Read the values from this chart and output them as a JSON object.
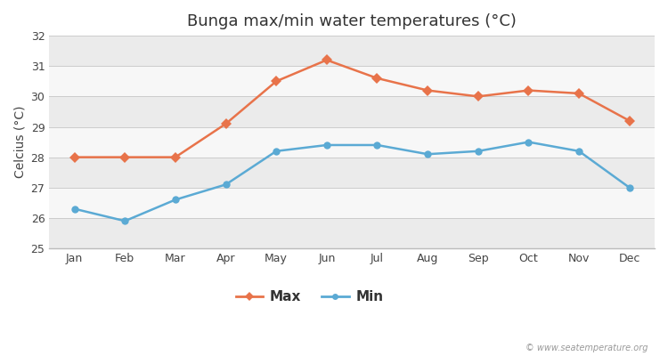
{
  "months": [
    "Jan",
    "Feb",
    "Mar",
    "Apr",
    "May",
    "Jun",
    "Jul",
    "Aug",
    "Sep",
    "Oct",
    "Nov",
    "Dec"
  ],
  "max_temps": [
    28.0,
    28.0,
    28.0,
    29.1,
    30.5,
    31.2,
    30.6,
    30.2,
    30.0,
    30.2,
    30.1,
    29.2
  ],
  "min_temps": [
    26.3,
    25.9,
    26.6,
    27.1,
    28.2,
    28.4,
    28.4,
    28.1,
    28.2,
    28.5,
    28.2,
    27.0
  ],
  "max_color": "#e8734a",
  "min_color": "#5baad4",
  "title": "Bunga max/min water temperatures (°C)",
  "ylabel": "Celcius (°C)",
  "ylim": [
    25,
    32
  ],
  "yticks": [
    25,
    26,
    27,
    28,
    29,
    30,
    31,
    32
  ],
  "bg_color": "#ffffff",
  "band_light": "#ebebeb",
  "band_dark": "#f7f7f7",
  "grid_color": "#cccccc",
  "watermark": "© www.seatemperature.org",
  "legend_max": "Max",
  "legend_min": "Min",
  "title_fontsize": 13,
  "label_fontsize": 10,
  "tick_fontsize": 9,
  "marker_size": 6
}
